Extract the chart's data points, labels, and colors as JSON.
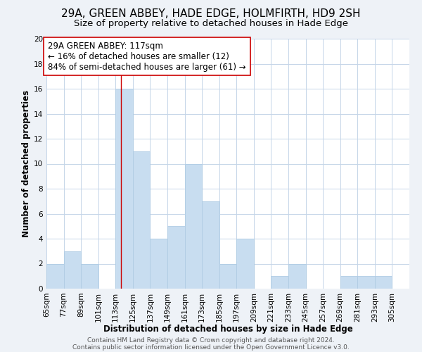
{
  "title": "29A, GREEN ABBEY, HADE EDGE, HOLMFIRTH, HD9 2SH",
  "subtitle": "Size of property relative to detached houses in Hade Edge",
  "xlabel": "Distribution of detached houses by size in Hade Edge",
  "ylabel": "Number of detached properties",
  "bin_labels": [
    "65sqm",
    "77sqm",
    "89sqm",
    "101sqm",
    "113sqm",
    "125sqm",
    "137sqm",
    "149sqm",
    "161sqm",
    "173sqm",
    "185sqm",
    "197sqm",
    "209sqm",
    "221sqm",
    "233sqm",
    "245sqm",
    "257sqm",
    "269sqm",
    "281sqm",
    "293sqm",
    "305sqm"
  ],
  "bin_edges": [
    65,
    77,
    89,
    101,
    113,
    125,
    137,
    149,
    161,
    173,
    185,
    197,
    209,
    221,
    233,
    245,
    257,
    269,
    281,
    293,
    305,
    317
  ],
  "counts": [
    2,
    3,
    2,
    0,
    16,
    11,
    4,
    5,
    10,
    7,
    2,
    4,
    0,
    1,
    2,
    0,
    0,
    1,
    1,
    1,
    0
  ],
  "bar_color": "#c8ddf0",
  "bar_edgecolor": "#b0cce4",
  "property_line_x": 117,
  "property_line_color": "#cc0000",
  "annotation_text": "29A GREEN ABBEY: 117sqm\n← 16% of detached houses are smaller (12)\n84% of semi-detached houses are larger (61) →",
  "annotation_box_edgecolor": "#cc0000",
  "annotation_box_facecolor": "#ffffff",
  "ylim": [
    0,
    20
  ],
  "yticks": [
    0,
    2,
    4,
    6,
    8,
    10,
    12,
    14,
    16,
    18,
    20
  ],
  "footer1": "Contains HM Land Registry data © Crown copyright and database right 2024.",
  "footer2": "Contains public sector information licensed under the Open Government Licence v3.0.",
  "bg_color": "#eef2f7",
  "plot_bg_color": "#ffffff",
  "grid_color": "#c5d5e8",
  "title_fontsize": 11,
  "subtitle_fontsize": 9.5,
  "axis_label_fontsize": 8.5,
  "tick_fontsize": 7.5,
  "annotation_fontsize": 8.5,
  "footer_fontsize": 6.5
}
